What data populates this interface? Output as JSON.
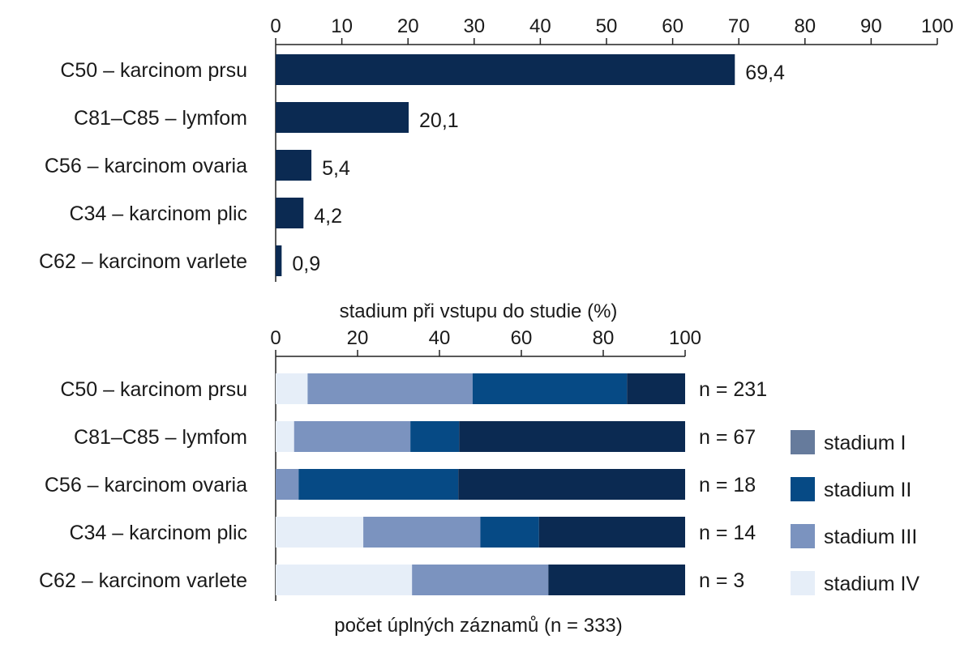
{
  "chart_data": [
    {
      "type": "bar",
      "orientation": "horizontal",
      "categories": [
        "C50 – karcinom prsu",
        "C81–C85 – lymfom",
        "C56 – karcinom ovaria",
        "C34 – karcinom plic",
        "C62 – karcinom varlete"
      ],
      "values": [
        69.4,
        20.1,
        5.4,
        4.2,
        0.9
      ],
      "value_labels": [
        "69,4",
        "20,1",
        "5,4",
        "4,2",
        "0,9"
      ],
      "xlim": [
        0,
        100
      ],
      "xticks": [
        "0",
        "10",
        "20",
        "30",
        "40",
        "50",
        "60",
        "70",
        "80",
        "90",
        "100"
      ],
      "xlabel": "",
      "ylabel": "",
      "title": "",
      "color": "#0b2a52",
      "axis_position": "top"
    },
    {
      "type": "bar",
      "orientation": "horizontal",
      "stacked": true,
      "title": "stadium při vstupu do studie (%)",
      "categories": [
        "C50 – karcinom prsu",
        "C81–C85 – lymfom",
        "C56 – karcinom ovaria",
        "C34 – karcinom plic",
        "C62 – karcinom varlete"
      ],
      "counts": [
        "n = 231",
        "n = 67",
        "n = 18",
        "n = 14",
        "n = 3"
      ],
      "xlim": [
        0,
        100
      ],
      "xticks": [
        "0",
        "20",
        "40",
        "60",
        "80",
        "100"
      ],
      "xlabel": "počet úplných záznamů (n = 333)",
      "axis_position": "top",
      "legend_position": "right",
      "series": [
        {
          "name": "stadium IV",
          "color": "#e6eef8",
          "values": [
            7.8,
            4.5,
            0,
            21.4,
            33.3
          ]
        },
        {
          "name": "stadium III",
          "color": "#7b93bf",
          "values": [
            40.3,
            28.4,
            5.6,
            28.6,
            33.3
          ]
        },
        {
          "name": "stadium II",
          "color": "#064a85",
          "values": [
            37.7,
            11.9,
            39.0,
            14.3,
            0
          ]
        },
        {
          "name": "stadium I",
          "color": "#0b2a52",
          "values": [
            14.2,
            55.2,
            55.4,
            35.7,
            33.4
          ]
        }
      ],
      "legend": [
        {
          "name": "stadium I",
          "color": "#667b9c"
        },
        {
          "name": "stadium II",
          "color": "#064a85"
        },
        {
          "name": "stadium III",
          "color": "#7b93bf"
        },
        {
          "name": "stadium IV",
          "color": "#e6eef8"
        }
      ]
    }
  ]
}
